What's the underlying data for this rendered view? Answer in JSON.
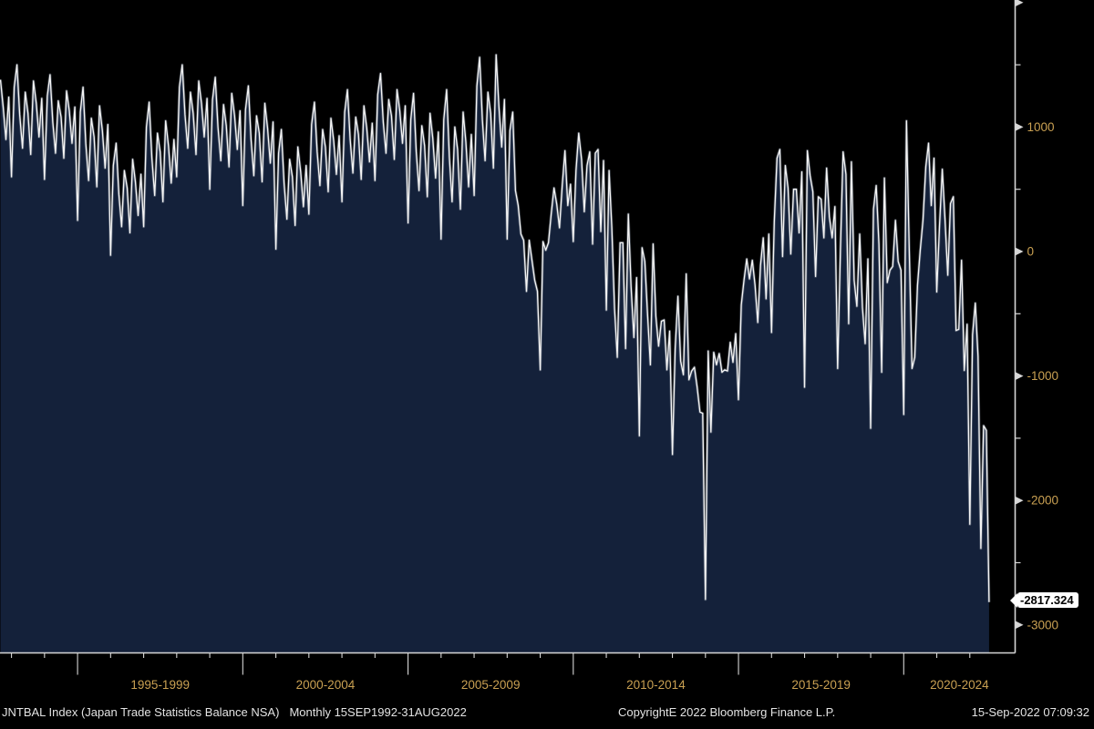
{
  "window": {
    "app": "Bloomberg chart"
  },
  "footer": {
    "security_label": "JNTBAL Index (Japan Trade Statistics Balance NSA)",
    "range_label": "Monthly 15SEP1992-31AUG2022",
    "copyright": "CopyrightЕ 2022 Bloomberg Finance L.P.",
    "timestamp": "15-Sep-2022 07:09:32"
  },
  "last_value_badge": "-2817.324",
  "colors": {
    "background": "#000000",
    "area_fill": "#14213A",
    "line": "#F5F5F5",
    "line_glow": "#7C8694",
    "axis": "#D6D6D6",
    "tick_label": "#C9A052",
    "footer_text": "#E3E3E3",
    "badge_bg": "#FFFFFF",
    "badge_text": "#000000"
  },
  "chart_data": {
    "type": "area",
    "title": "",
    "series_name": "JNTBAL Index - Japan Trade Statistics Balance NSA",
    "frequency": "monthly",
    "x_start": "1992-09",
    "x_end": "2022-08",
    "unit": "JPY billion",
    "grid": false,
    "legend": "none",
    "ylim": [
      -3230,
      2020
    ],
    "last_value": -2817.324,
    "y_axis": {
      "side": "right",
      "major_ticks": [
        2000,
        1000,
        0,
        -1000,
        -2000,
        -3000
      ],
      "minor_ticks": [
        1500,
        500,
        -500,
        -1500,
        -2500
      ],
      "labels": [
        {
          "v": 1000,
          "t": "1000"
        },
        {
          "v": 0,
          "t": "0"
        },
        {
          "v": -1000,
          "t": "-1000"
        },
        {
          "v": -2000,
          "t": "-2000"
        },
        {
          "v": -3000,
          "t": "-3000"
        }
      ]
    },
    "x_axis": {
      "major_tick_years": [
        1995,
        2000,
        2005,
        2010,
        2015,
        2020
      ],
      "minor_tick_year_step": 1,
      "span_labels": [
        "1995-1999",
        "2000-2004",
        "2005-2009",
        "2010-2014",
        "2015-2019",
        "2020-2024"
      ]
    },
    "values": [
      1380,
      1160,
      900,
      1240,
      600,
      1320,
      1500,
      1100,
      830,
      1280,
      1110,
      780,
      1370,
      1190,
      920,
      1230,
      580,
      1250,
      1420,
      1040,
      790,
      1210,
      1080,
      750,
      1290,
      1130,
      870,
      1160,
      250,
      1120,
      1320,
      870,
      570,
      1070,
      920,
      520,
      1170,
      970,
      670,
      1020,
      -30,
      690,
      870,
      460,
      200,
      650,
      510,
      150,
      740,
      560,
      290,
      620,
      200,
      1000,
      1200,
      750,
      450,
      950,
      800,
      400,
      1050,
      850,
      550,
      900,
      600,
      1320,
      1500,
      1100,
      830,
      1280,
      1110,
      780,
      1370,
      1190,
      920,
      1230,
      500,
      1220,
      1400,
      1000,
      730,
      1180,
      1010,
      680,
      1270,
      1090,
      820,
      1130,
      370,
      1140,
      1330,
      900,
      610,
      1090,
      950,
      560,
      1190,
      990,
      710,
      1040,
      20,
      790,
      980,
      550,
      260,
      740,
      600,
      210,
      840,
      640,
      360,
      690,
      300,
      1020,
      1200,
      800,
      530,
      980,
      840,
      480,
      1070,
      890,
      620,
      930,
      400,
      1120,
      1300,
      900,
      630,
      1080,
      940,
      580,
      1170,
      990,
      720,
      1030,
      570,
      1260,
      1430,
      1040,
      790,
      1220,
      1090,
      740,
      1300,
      1130,
      870,
      1170,
      230,
      1060,
      1270,
      800,
      490,
      1010,
      850,
      440,
      1110,
      910,
      590,
      960,
      100,
      1060,
      1300,
      760,
      400,
      1000,
      820,
      340,
      1120,
      880,
      520,
      940,
      450,
      1330,
      1560,
      1060,
      730,
      1280,
      1110,
      670,
      1580,
      1170,
      840,
      1220,
      100,
      970,
      1120,
      490,
      370,
      140,
      90,
      -320,
      90,
      -70,
      -230,
      -320,
      -950,
      80,
      10,
      70,
      300,
      510,
      380,
      190,
      530,
      810,
      370,
      540,
      80,
      650,
      950,
      740,
      320,
      690,
      800,
      60,
      790,
      820,
      160,
      730,
      -470,
      650,
      190,
      -460,
      -850,
      70,
      70,
      -780,
      300,
      -280,
      -690,
      -210,
      -1480,
      30,
      -80,
      -520,
      -910,
      60,
      -520,
      -760,
      -560,
      -550,
      -950,
      -640,
      -1630,
      -780,
      -360,
      -880,
      -990,
      -180,
      -1030,
      -960,
      -930,
      -1090,
      -1290,
      -1300,
      -2795,
      -800,
      -1450,
      -810,
      -910,
      -820,
      -970,
      -950,
      -960,
      -730,
      -890,
      -660,
      -1190,
      -430,
      -230,
      -60,
      -220,
      -70,
      -270,
      -570,
      -110,
      110,
      -380,
      140,
      -650,
      240,
      750,
      820,
      -40,
      690,
      510,
      -20,
      500,
      500,
      150,
      640,
      -1090,
      810,
      610,
      480,
      -200,
      440,
      420,
      110,
      670,
      280,
      110,
      360,
      -940,
      0,
      800,
      620,
      -580,
      720,
      -230,
      -440,
      140,
      -450,
      -740,
      -60,
      -1420,
      340,
      530,
      60,
      -970,
      590,
      -250,
      -150,
      -120,
      250,
      -80,
      -150,
      -1310,
      1050,
      30,
      -940,
      -850,
      -270,
      10,
      250,
      680,
      870,
      370,
      750,
      -325,
      215,
      660,
      255,
      -190,
      385,
      440,
      -635,
      -625,
      -70,
      -955,
      -585,
      -2191,
      -668,
      -414,
      -842,
      -2385,
      -1399,
      -1437,
      -2817.324
    ]
  }
}
